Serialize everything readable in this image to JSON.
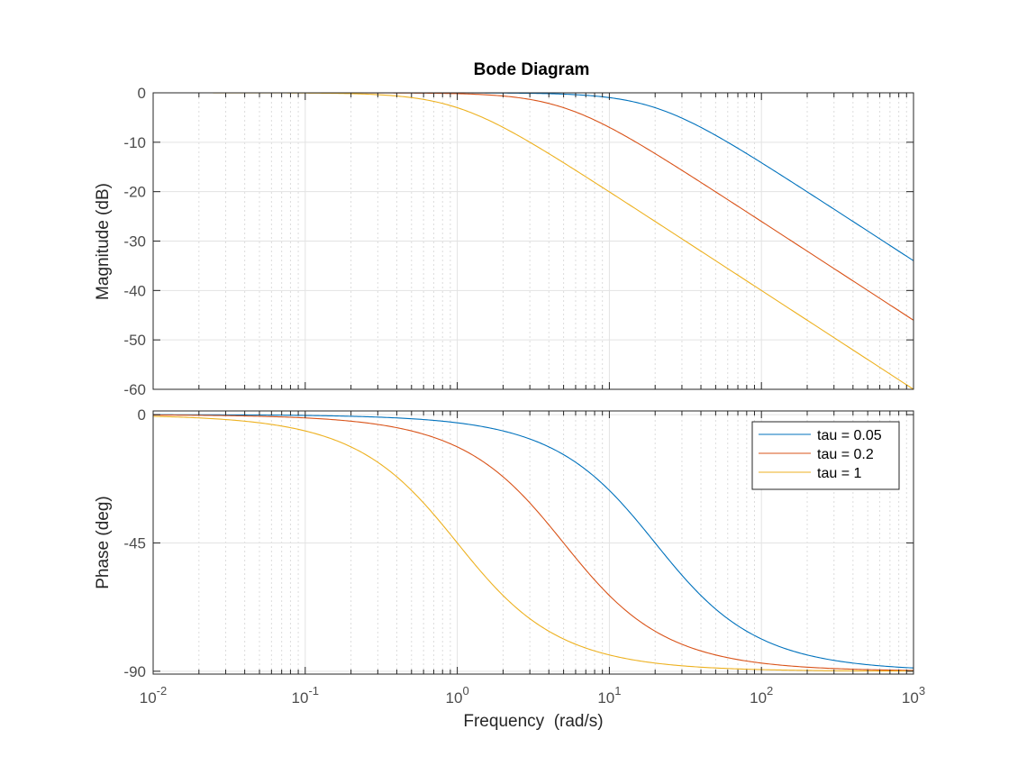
{
  "chart_data": [
    {
      "type": "line",
      "title": "Bode Diagram",
      "ylabel": "Magnitude (dB)",
      "xscale": "log",
      "xlim": [
        0.01,
        1000
      ],
      "ylim": [
        -60,
        0
      ],
      "yticks": [
        "0",
        "-10",
        "-20",
        "-30",
        "-40",
        "-50",
        "-60"
      ],
      "grid": true,
      "series": [
        {
          "name": "tau = 0.05",
          "tau": 0.05,
          "color": "#0072BD"
        },
        {
          "name": "tau = 0.2",
          "tau": 0.2,
          "color": "#D95319"
        },
        {
          "name": "tau = 1",
          "tau": 1,
          "color": "#EDB120"
        }
      ]
    },
    {
      "type": "line",
      "ylabel": "Phase (deg)",
      "xlabel": "Frequency  (rad/s)",
      "xscale": "log",
      "xlim": [
        0.01,
        1000
      ],
      "ylim": [
        -91,
        1.3
      ],
      "yticks": [
        "0",
        "-45",
        "-90"
      ],
      "xticks": [
        {
          "base": "10",
          "exp": "-2"
        },
        {
          "base": "10",
          "exp": "-1"
        },
        {
          "base": "10",
          "exp": "0"
        },
        {
          "base": "10",
          "exp": "1"
        },
        {
          "base": "10",
          "exp": "2"
        },
        {
          "base": "10",
          "exp": "3"
        }
      ],
      "grid": true,
      "legend": "top-right",
      "series": [
        {
          "name": "tau = 0.05",
          "tau": 0.05,
          "color": "#0072BD"
        },
        {
          "name": "tau = 0.2",
          "tau": 0.2,
          "color": "#D95319"
        },
        {
          "name": "tau = 1",
          "tau": 1,
          "color": "#EDB120"
        }
      ]
    }
  ]
}
